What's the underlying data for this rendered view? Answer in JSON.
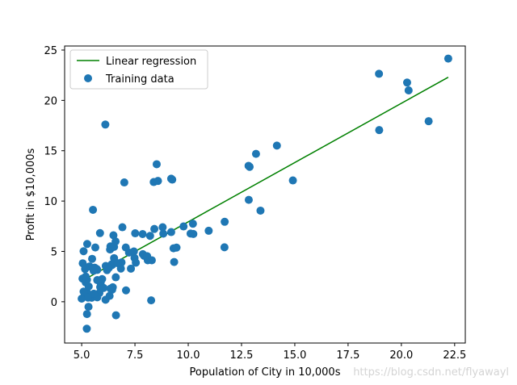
{
  "chart_data": {
    "type": "scatter",
    "xlabel": "Population of City in 10,000s",
    "ylabel": "Profit in $10,000s",
    "xlim": [
      4.2,
      23.0
    ],
    "ylim": [
      -4.1,
      25.4
    ],
    "xticks": [
      "5.0",
      "7.5",
      "10.0",
      "12.5",
      "15.0",
      "17.5",
      "20.0",
      "22.5"
    ],
    "xtick_values": [
      5,
      7.5,
      10,
      12.5,
      15,
      17.5,
      20,
      22.5
    ],
    "yticks": [
      "0",
      "5",
      "10",
      "15",
      "20",
      "25"
    ],
    "ytick_values": [
      0,
      5,
      10,
      15,
      20,
      25
    ],
    "legend": {
      "position": "upper-left",
      "entries": [
        {
          "label": "Linear regression",
          "kind": "line"
        },
        {
          "label": "Training data",
          "kind": "marker"
        }
      ]
    },
    "series": [
      {
        "name": "Training data",
        "kind": "scatter",
        "color": "#1f77b4",
        "x": [
          6.11,
          5.53,
          8.52,
          7.0,
          5.86,
          8.38,
          7.48,
          8.58,
          6.49,
          5.05,
          5.71,
          14.16,
          5.73,
          8.41,
          5.64,
          5.37,
          6.37,
          5.13,
          6.43,
          7.07,
          6.19,
          20.27,
          5.49,
          6.33,
          5.56,
          18.95,
          12.83,
          10.96,
          13.18,
          22.2,
          5.25,
          6.59,
          9.25,
          5.89,
          8.21,
          7.93,
          8.1,
          5.61,
          12.84,
          6.35,
          5.41,
          6.87,
          5.64,
          9.31,
          9.45,
          8.83,
          5.19,
          21.28,
          14.91,
          18.96,
          7.22,
          5.26,
          5.0,
          5.16,
          5.32,
          6.43,
          7.87,
          6.52,
          8.8,
          5.47,
          6.12,
          6.13,
          6.84,
          6.46,
          9.34,
          5.27,
          6.91,
          7.54,
          8.07,
          7.51,
          6.52,
          5.87,
          5.25,
          5.96,
          5.83,
          12.88,
          5.04,
          5.09,
          10.11,
          5.73,
          5.19,
          6.35,
          9.78,
          6.41,
          6.69,
          11.71,
          6.03,
          7.08,
          5.57,
          7.86,
          10.24,
          5.09,
          8.26,
          7.45,
          5.33,
          7.31,
          8.29,
          5.73,
          9.2,
          10.22,
          11.7,
          13.39,
          20.34,
          6.61,
          9.2,
          5.24,
          6.31,
          6.6,
          6.28,
          5.57,
          5.3
        ],
        "y": [
          17.6,
          9.13,
          13.66,
          11.85,
          6.82,
          11.89,
          4.35,
          12.0,
          6.6,
          3.82,
          3.25,
          15.51,
          3.16,
          7.23,
          0.72,
          3.51,
          5.3,
          0.56,
          3.65,
          5.39,
          3.14,
          21.77,
          4.26,
          5.19,
          3.08,
          22.64,
          13.5,
          7.05,
          14.69,
          24.15,
          -1.22,
          5.99,
          12.13,
          1.85,
          6.54,
          4.56,
          4.12,
          3.39,
          10.12,
          5.5,
          0.56,
          3.91,
          5.39,
          5.31,
          5.38,
          6.76,
          1.92,
          17.93,
          12.05,
          17.05,
          4.89,
          5.74,
          0.31,
          3.25,
          -0.5,
          1.2,
          4.73,
          5.45,
          7.4,
          0.4,
          0.2,
          3.56,
          3.3,
          1.44,
          3.95,
          0.86,
          7.4,
          3.88,
          4.53,
          6.8,
          4.33,
          1.45,
          2.19,
          2.25,
          0.86,
          13.4,
          2.3,
          1.01,
          6.77,
          2.15,
          2.5,
          1.3,
          7.48,
          3.72,
          3.83,
          7.94,
          1.37,
          1.13,
          3.3,
          6.72,
          6.73,
          5.02,
          0.14,
          5.0,
          1.52,
          3.29,
          4.12,
          0.44,
          12.22,
          7.75,
          5.41,
          9.05,
          20.99,
          -1.34,
          6.92,
          -2.68,
          0.58,
          2.43,
          3.38,
          0.8,
          0.41
        ]
      },
      {
        "name": "Linear regression",
        "kind": "line",
        "color": "#008000",
        "x": [
          5.0,
          22.2
        ],
        "y": [
          2.05,
          22.3
        ]
      }
    ]
  },
  "watermark": "https://blog.csdn.net/flyawayl"
}
